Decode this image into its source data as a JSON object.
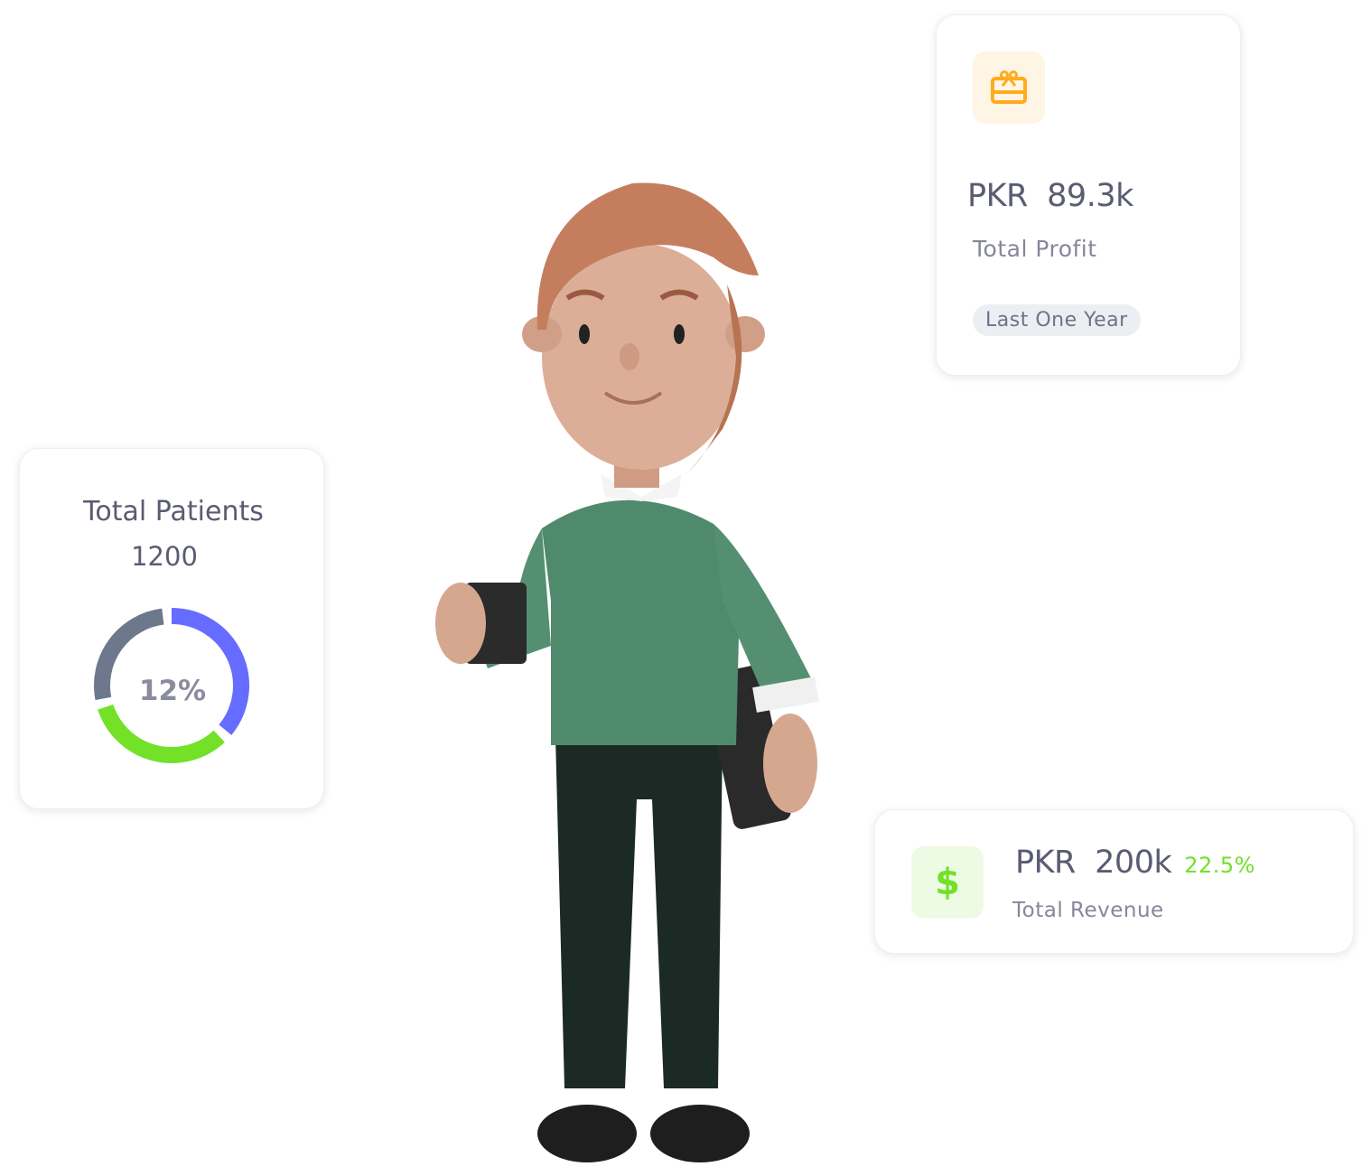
{
  "profit_card": {
    "icon": "gift-card-icon",
    "currency": "PKR",
    "amount": "89.3k",
    "label": "Total Profit",
    "period": "Last One Year",
    "accent": "#ffab1d"
  },
  "patients_card": {
    "title": "Total Patients",
    "value": "1200",
    "donut_center": "12%",
    "segments": [
      {
        "color": "#666cff",
        "fraction": 0.36
      },
      {
        "color": "#72e128",
        "fraction": 0.32
      },
      {
        "color": "#6d788d",
        "fraction": 0.26
      }
    ]
  },
  "revenue_card": {
    "icon": "dollar-icon",
    "icon_glyph": "$",
    "currency": "PKR",
    "amount": "200k",
    "change": "22.5%",
    "label": "Total Revenue",
    "accent": "#72e128"
  }
}
